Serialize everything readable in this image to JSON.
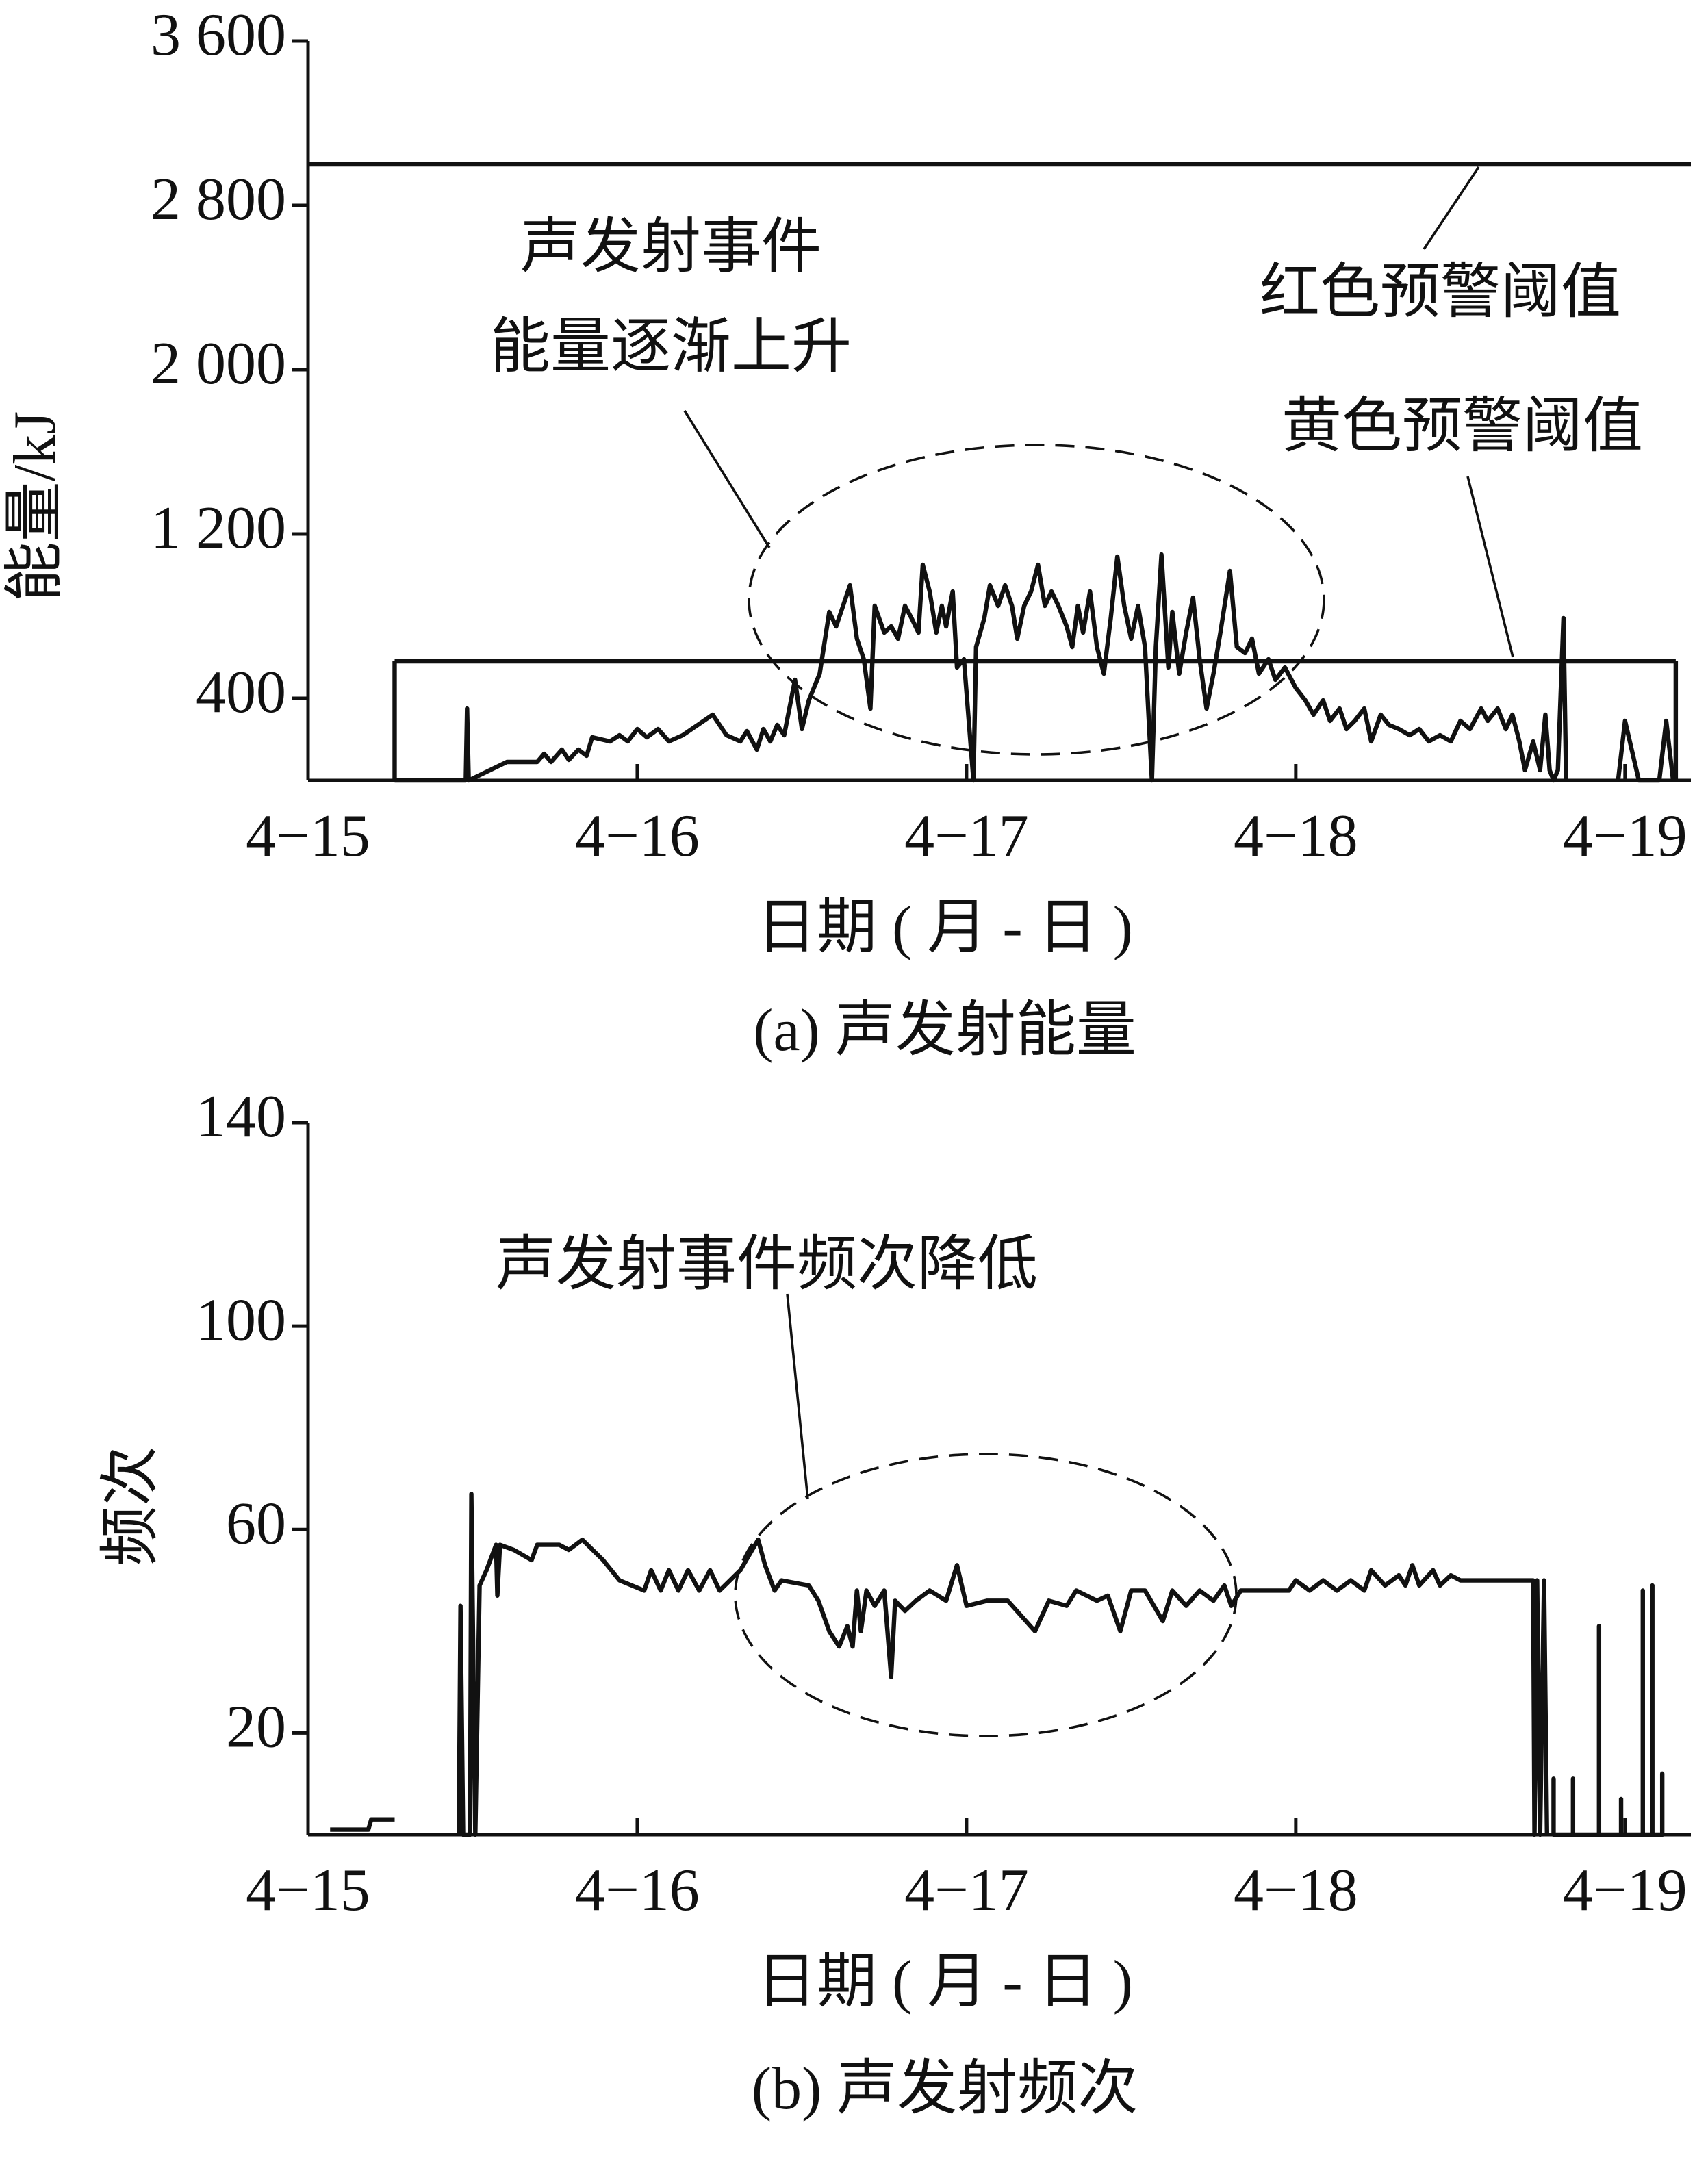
{
  "chart_data": [
    {
      "type": "line",
      "caption": "(a)  声发射能量",
      "xlabel": "日期 ( 月 - 日 )",
      "ylabel": "能量/kJ",
      "xlim": [
        15,
        19.2
      ],
      "ylim": [
        0,
        3600
      ],
      "xticks": [
        {
          "value": 15,
          "label": "4−15"
        },
        {
          "value": 16,
          "label": "4−16"
        },
        {
          "value": 17,
          "label": "4−17"
        },
        {
          "value": 18,
          "label": "4−18"
        },
        {
          "value": 19,
          "label": "4−19"
        }
      ],
      "yticks": [
        {
          "value": 400,
          "label": "400"
        },
        {
          "value": 1200,
          "label": "1 200"
        },
        {
          "value": 2000,
          "label": "2 000"
        },
        {
          "value": 2800,
          "label": "2 800"
        },
        {
          "value": 3600,
          "label": "3 600"
        }
      ],
      "thresholds": [
        {
          "label": "红色预警阈值",
          "value": 3000
        },
        {
          "label": "黄色预警阈值",
          "value": 580,
          "x_range": [
            15.263,
            19.154
          ]
        }
      ],
      "annotation": [
        "声发射事件",
        "能量逐渐上升"
      ],
      "color": "#111111",
      "x": [
        15.263,
        15.479,
        15.483,
        15.488,
        15.604,
        15.696,
        15.717,
        15.738,
        15.771,
        15.792,
        15.821,
        15.846,
        15.863,
        15.917,
        15.946,
        15.971,
        16.0,
        16.029,
        16.063,
        16.096,
        16.138,
        16.229,
        16.271,
        16.313,
        16.333,
        16.363,
        16.383,
        16.404,
        16.425,
        16.446,
        16.479,
        16.5,
        16.521,
        16.554,
        16.583,
        16.604,
        16.625,
        16.646,
        16.667,
        16.688,
        16.708,
        16.721,
        16.75,
        16.771,
        16.792,
        16.813,
        16.833,
        16.854,
        16.867,
        16.888,
        16.908,
        16.925,
        16.938,
        16.958,
        16.971,
        16.992,
        17.021,
        17.029,
        17.054,
        17.071,
        17.096,
        17.117,
        17.138,
        17.154,
        17.175,
        17.196,
        17.217,
        17.238,
        17.258,
        17.279,
        17.304,
        17.321,
        17.338,
        17.354,
        17.375,
        17.396,
        17.417,
        17.438,
        17.458,
        17.479,
        17.5,
        17.521,
        17.542,
        17.563,
        17.575,
        17.592,
        17.613,
        17.625,
        17.646,
        17.667,
        17.688,
        17.708,
        17.729,
        17.75,
        17.771,
        17.8,
        17.821,
        17.846,
        17.867,
        17.888,
        17.917,
        17.938,
        17.967,
        18.0,
        18.029,
        18.054,
        18.083,
        18.104,
        18.133,
        18.154,
        18.179,
        18.208,
        18.229,
        18.258,
        18.283,
        18.313,
        18.346,
        18.375,
        18.404,
        18.438,
        18.471,
        18.5,
        18.529,
        18.563,
        18.583,
        18.613,
        18.638,
        18.658,
        18.679,
        18.696,
        18.721,
        18.742,
        18.758,
        18.771,
        18.783,
        18.796,
        18.813,
        18.821,
        18.9,
        18.979,
        19.0,
        19.042,
        19.104,
        19.125,
        19.146
      ],
      "values": [
        0,
        0,
        350,
        0,
        90,
        90,
        130,
        90,
        150,
        100,
        150,
        120,
        210,
        190,
        220,
        190,
        250,
        210,
        250,
        190,
        220,
        320,
        220,
        190,
        240,
        150,
        250,
        190,
        270,
        220,
        490,
        250,
        390,
        520,
        820,
        750,
        850,
        950,
        690,
        590,
        350,
        850,
        720,
        750,
        690,
        850,
        790,
        720,
        1050,
        920,
        720,
        850,
        750,
        920,
        550,
        590,
        0,
        650,
        790,
        950,
        850,
        950,
        850,
        690,
        850,
        920,
        1050,
        850,
        920,
        850,
        750,
        650,
        850,
        720,
        920,
        650,
        520,
        790,
        1090,
        850,
        690,
        850,
        650,
        0,
        650,
        1100,
        550,
        820,
        520,
        720,
        890,
        590,
        350,
        520,
        720,
        1020,
        650,
        620,
        690,
        520,
        590,
        490,
        550,
        450,
        390,
        320,
        390,
        290,
        350,
        250,
        290,
        350,
        190,
        320,
        270,
        250,
        220,
        250,
        190,
        220,
        190,
        290,
        250,
        350,
        290,
        350,
        250,
        320,
        190,
        50,
        190,
        50,
        320,
        50,
        0,
        50,
        790,
        0,
        null,
        0,
        290,
        0,
        0,
        290,
        0
      ]
    },
    {
      "type": "line",
      "caption": "(b)  声发射频次",
      "xlabel": "日期 ( 月 - 日 )",
      "ylabel": "频次",
      "xlim": [
        15,
        19.2
      ],
      "ylim": [
        0,
        140
      ],
      "xticks": [
        {
          "value": 15,
          "label": "4−15"
        },
        {
          "value": 16,
          "label": "4−16"
        },
        {
          "value": 17,
          "label": "4−17"
        },
        {
          "value": 18,
          "label": "4−18"
        },
        {
          "value": 19,
          "label": "4−19"
        }
      ],
      "yticks": [
        20,
        60,
        100,
        140
      ],
      "annotation": [
        "声发射事件频次降低"
      ],
      "color": "#111111",
      "x": [
        15.067,
        15.183,
        15.192,
        15.263,
        15.3,
        15.458,
        15.463,
        15.471,
        15.492,
        15.496,
        15.508,
        15.521,
        15.542,
        15.571,
        15.575,
        15.583,
        15.625,
        15.679,
        15.696,
        15.763,
        15.792,
        15.833,
        15.896,
        15.946,
        16.021,
        16.042,
        16.071,
        16.096,
        16.125,
        16.154,
        16.188,
        16.221,
        16.25,
        16.313,
        16.367,
        16.388,
        16.417,
        16.438,
        16.521,
        16.55,
        16.583,
        16.613,
        16.638,
        16.654,
        16.667,
        16.679,
        16.696,
        16.721,
        16.75,
        16.771,
        16.783,
        16.813,
        16.846,
        16.888,
        16.938,
        16.971,
        17.0,
        17.063,
        17.125,
        17.208,
        17.25,
        17.304,
        17.333,
        17.396,
        17.429,
        17.467,
        17.5,
        17.542,
        17.596,
        17.625,
        17.667,
        17.708,
        17.75,
        17.783,
        17.804,
        17.833,
        17.875,
        17.979,
        18.0,
        18.042,
        18.083,
        18.125,
        18.167,
        18.208,
        18.229,
        18.271,
        18.313,
        18.333,
        18.354,
        18.375,
        18.417,
        18.438,
        18.471,
        18.5,
        18.542,
        18.721,
        18.725,
        18.733,
        18.742,
        18.754,
        18.763,
        18.77,
        18.783,
        18.783,
        18.783,
        18.842,
        18.842,
        18.842,
        18.921,
        18.921,
        18.921,
        18.988,
        18.988,
        18.988,
        19.054,
        19.054,
        19.054,
        19.083,
        19.083,
        19.083,
        19.113,
        19.113,
        19.113
      ],
      "values": [
        1,
        1,
        3,
        3,
        null,
        0,
        45,
        0,
        0,
        67,
        0,
        49,
        52,
        57,
        47,
        57,
        56,
        54,
        57,
        57,
        56,
        58,
        54,
        50,
        48,
        52,
        48,
        52,
        48,
        52,
        48,
        52,
        48,
        52,
        58,
        53,
        48,
        50,
        49,
        46,
        40,
        37,
        41,
        37,
        48,
        40,
        48,
        45,
        48,
        31,
        46,
        44,
        46,
        48,
        46,
        53,
        45,
        46,
        46,
        40,
        46,
        45,
        48,
        46,
        47,
        40,
        48,
        48,
        42,
        48,
        45,
        48,
        46,
        49,
        45,
        48,
        48,
        48,
        50,
        48,
        50,
        48,
        50,
        48,
        52,
        49,
        51,
        49,
        53,
        49,
        52,
        49,
        51,
        50,
        50,
        50,
        0,
        50,
        0,
        50,
        0,
        null,
        0,
        11,
        0,
        0,
        11,
        0,
        0,
        41,
        0,
        0,
        7,
        0,
        0,
        48,
        0,
        0,
        49,
        0,
        0,
        12,
        0
      ]
    }
  ]
}
